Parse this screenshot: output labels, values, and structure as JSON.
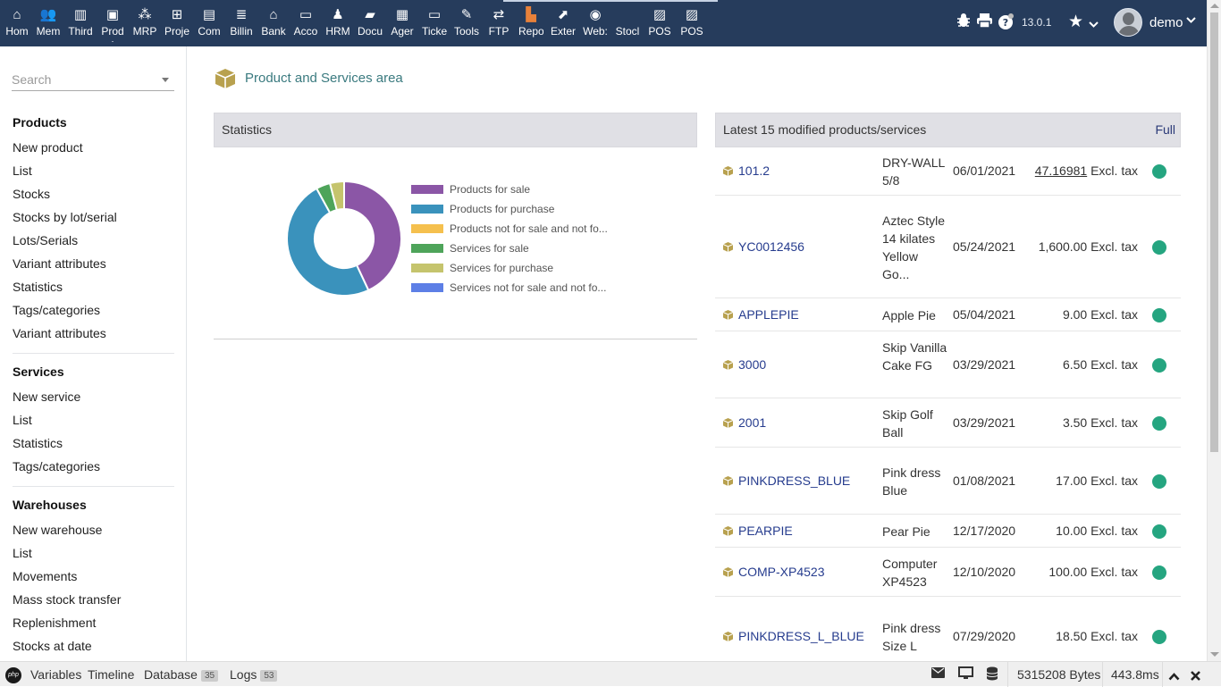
{
  "topmenu": {
    "items": [
      {
        "label": "Hom",
        "icon": "home-icon",
        "glyph": "⌂"
      },
      {
        "label": "Mem",
        "icon": "members-icon",
        "glyph": "👥"
      },
      {
        "label": "Third",
        "icon": "building-icon",
        "glyph": "▥"
      },
      {
        "label": "Prod",
        "icon": "cube-icon",
        "glyph": "▣",
        "active": true
      },
      {
        "label": "MRP",
        "icon": "cubes-icon",
        "glyph": "⁂"
      },
      {
        "label": "Proje",
        "icon": "sitemap-icon",
        "glyph": "⊞"
      },
      {
        "label": "Com",
        "icon": "suitcase-icon",
        "glyph": "▤"
      },
      {
        "label": "Billin",
        "icon": "coins-icon",
        "glyph": "≣"
      },
      {
        "label": "Bank",
        "icon": "bank-icon",
        "glyph": "⌂"
      },
      {
        "label": "Acco",
        "icon": "money-check-icon",
        "glyph": "▭"
      },
      {
        "label": "HRM",
        "icon": "user-tie-icon",
        "glyph": "♟"
      },
      {
        "label": "Docu",
        "icon": "folder-icon",
        "glyph": "▰"
      },
      {
        "label": "Ager",
        "icon": "calendar-icon",
        "glyph": "▦"
      },
      {
        "label": "Ticke",
        "icon": "ticket-icon",
        "glyph": "▭"
      },
      {
        "label": "Tools",
        "icon": "wrench-icon",
        "glyph": "✎"
      },
      {
        "label": "FTP",
        "icon": "exchange-icon",
        "glyph": "⇄"
      },
      {
        "label": "Repo",
        "icon": "report-icon",
        "glyph": "▙"
      },
      {
        "label": "Exter",
        "icon": "external-icon",
        "glyph": "⬈"
      },
      {
        "label": "Web:",
        "icon": "globe-icon",
        "glyph": "◉"
      },
      {
        "label": "Stocl",
        "icon": "stock-icon",
        "glyph": ""
      },
      {
        "label": "POS",
        "icon": "cash-register-icon",
        "glyph": "▨"
      },
      {
        "label": "POS",
        "icon": "cash-register-icon",
        "glyph": "▨"
      }
    ],
    "version": "13.0.1",
    "username": "demo"
  },
  "sidebar": {
    "search_placeholder": "Search",
    "sections": [
      {
        "title": "Products",
        "items": [
          "New product",
          "List",
          "Stocks",
          "Stocks by lot/serial",
          "Lots/Serials",
          "Variant attributes",
          "Statistics",
          "Tags/categories",
          "Variant attributes"
        ]
      },
      {
        "title": "Services",
        "items": [
          "New service",
          "List",
          "Statistics",
          "Tags/categories"
        ]
      },
      {
        "title": "Warehouses",
        "items": [
          "New warehouse",
          "List",
          "Movements",
          "Mass stock transfer",
          "Replenishment",
          "Stocks at date"
        ]
      }
    ]
  },
  "main": {
    "title": "Product and Services area",
    "stats_title": "Statistics",
    "latest_title": "Latest 15 modified products/services",
    "full_link": "Full"
  },
  "chart_data": {
    "type": "pie",
    "donut": true,
    "labels": [
      "Products for sale",
      "Products for purchase",
      "Products not for sale and not fo...",
      "Services for sale",
      "Services for purchase",
      "Services not for sale and not fo..."
    ],
    "values": [
      43,
      49,
      0,
      4,
      4,
      0
    ],
    "colors": [
      "#8b56a6",
      "#3a92bc",
      "#f5c04e",
      "#4ea45a",
      "#c5c46d",
      "#5d7fe6"
    ],
    "legend_position": "right"
  },
  "latest": [
    {
      "ref": "101.2",
      "label": "DRY-WALL 5/8",
      "date": "06/01/2021",
      "price": "47.16981",
      "tax": "Excl. tax",
      "underlined": true
    },
    {
      "ref": "YC0012456",
      "label": "Aztec Style 14 kilates Yellow Go...",
      "date": "05/24/2021",
      "price": "1,600.00",
      "tax": "Excl. tax"
    },
    {
      "ref": "APPLEPIE",
      "label": "Apple Pie",
      "date": "05/04/2021",
      "price": "9.00",
      "tax": "Excl. tax"
    },
    {
      "ref": "3000",
      "label": "Skip Vanilla Cake FG",
      "date": "03/29/2021",
      "price": "6.50",
      "tax": "Excl. tax"
    },
    {
      "ref": "2001",
      "label": "Skip Golf Ball",
      "date": "03/29/2021",
      "price": "3.50",
      "tax": "Excl. tax"
    },
    {
      "ref": "PINKDRESS_BLUE",
      "label": "Pink dress Blue",
      "date": "01/08/2021",
      "price": "17.00",
      "tax": "Excl. tax"
    },
    {
      "ref": "PEARPIE",
      "label": "Pear Pie",
      "date": "12/17/2020",
      "price": "10.00",
      "tax": "Excl. tax"
    },
    {
      "ref": "COMP-XP4523",
      "label": "Computer XP4523",
      "date": "12/10/2020",
      "price": "100.00",
      "tax": "Excl. tax"
    },
    {
      "ref": "PINKDRESS_L_BLUE",
      "label": "Pink dress Size L",
      "date": "07/29/2020",
      "price": "18.50",
      "tax": "Excl. tax"
    }
  ],
  "debugbar": {
    "tabs": [
      {
        "label": "Variables"
      },
      {
        "label": "Timeline"
      },
      {
        "label": "Database",
        "badge": "35"
      },
      {
        "label": "Logs",
        "badge": "53"
      }
    ],
    "memory": "5315208 Bytes",
    "time": "443.8ms",
    "php_logo": "php"
  }
}
